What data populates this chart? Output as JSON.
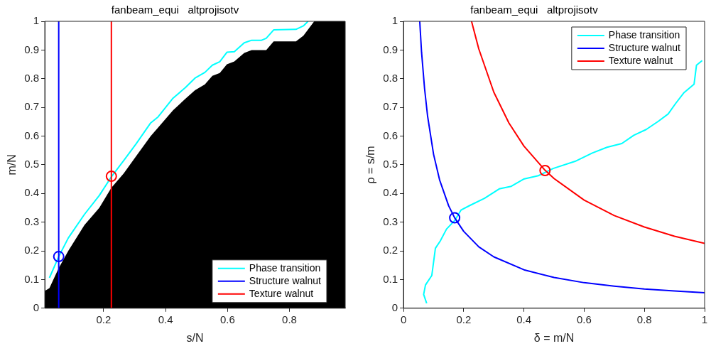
{
  "chart_data": [
    {
      "type": "line",
      "title": "fanbeam_equi   altprojisotv",
      "xlabel": "s/N",
      "ylabel": "m/N",
      "xlim": [
        0.01,
        0.98
      ],
      "ylim": [
        0,
        1
      ],
      "xticks": [
        0.2,
        0.4,
        0.6,
        0.8
      ],
      "yticks": [
        0,
        0.1,
        0.2,
        0.3,
        0.4,
        0.5,
        0.6,
        0.7,
        0.8,
        0.9,
        1
      ],
      "legend": "bottom right",
      "series": [
        {
          "type": "area",
          "color": "#000000",
          "x": [
            0.01,
            0.025,
            0.055,
            0.086,
            0.138,
            0.186,
            0.225,
            0.265,
            0.305,
            0.352,
            0.376,
            0.424,
            0.464,
            0.495,
            0.527,
            0.551,
            0.575,
            0.598,
            0.622,
            0.654,
            0.678,
            0.71,
            0.725,
            0.749,
            0.821,
            0.845,
            0.88,
            0.98
          ],
          "values": [
            0.06,
            0.07,
            0.14,
            0.2,
            0.29,
            0.35,
            0.42,
            0.47,
            0.53,
            0.6,
            0.63,
            0.69,
            0.73,
            0.76,
            0.78,
            0.81,
            0.82,
            0.85,
            0.86,
            0.89,
            0.9,
            0.9,
            0.9,
            0.93,
            0.93,
            0.95,
            1,
            1
          ]
        },
        {
          "type": "line",
          "name": "Phase transition",
          "color": "#00ffff",
          "x": [
            0.025,
            0.055,
            0.086,
            0.138,
            0.186,
            0.225,
            0.265,
            0.305,
            0.352,
            0.376,
            0.424,
            0.464,
            0.495,
            0.527,
            0.551,
            0.575,
            0.598,
            0.622,
            0.654,
            0.678,
            0.71,
            0.725,
            0.749,
            0.821,
            0.845,
            0.86
          ],
          "values": [
            0.106,
            0.18,
            0.245,
            0.327,
            0.393,
            0.458,
            0.515,
            0.573,
            0.646,
            0.667,
            0.732,
            0.769,
            0.802,
            0.822,
            0.847,
            0.859,
            0.892,
            0.894,
            0.925,
            0.934,
            0.934,
            0.941,
            0.97,
            0.972,
            0.984,
            1
          ]
        },
        {
          "type": "line",
          "name": "Structure walnut",
          "color": "#0000ff",
          "x": [
            0.055,
            0.055
          ],
          "values": [
            0,
            1
          ]
        },
        {
          "type": "line",
          "name": "Texture walnut",
          "color": "#ff0000",
          "x": [
            0.225,
            0.225
          ],
          "values": [
            0,
            1
          ]
        },
        {
          "type": "scatter",
          "marker": "circle",
          "color": "#0000ff",
          "x": [
            0.055
          ],
          "values": [
            0.18
          ]
        },
        {
          "type": "scatter",
          "marker": "circle",
          "color": "#ff0000",
          "x": [
            0.225
          ],
          "values": [
            0.46
          ]
        }
      ]
    },
    {
      "type": "line",
      "title": "fanbeam_equi   altprojisotv",
      "xlabel": "δ = m/N",
      "ylabel": "ρ = s/m",
      "xlim": [
        0,
        1
      ],
      "ylim": [
        0,
        1
      ],
      "xticks": [
        0,
        0.2,
        0.4,
        0.6,
        0.8,
        1
      ],
      "yticks": [
        0,
        0.1,
        0.2,
        0.3,
        0.4,
        0.5,
        0.6,
        0.7,
        0.8,
        0.9,
        1
      ],
      "legend": "top right",
      "series": [
        {
          "type": "line",
          "name": "Phase transition",
          "color": "#00ffff",
          "x": [
            0.077,
            0.067,
            0.073,
            0.094,
            0.106,
            0.122,
            0.143,
            0.171,
            0.191,
            0.22,
            0.269,
            0.318,
            0.358,
            0.399,
            0.448,
            0.497,
            0.57,
            0.627,
            0.676,
            0.725,
            0.765,
            0.806,
            0.847,
            0.879,
            0.904,
            0.932,
            0.965,
            0.973,
            0.992
          ],
          "values": [
            0.017,
            0.048,
            0.081,
            0.114,
            0.209,
            0.234,
            0.276,
            0.307,
            0.342,
            0.358,
            0.383,
            0.416,
            0.425,
            0.45,
            0.462,
            0.487,
            0.512,
            0.541,
            0.561,
            0.574,
            0.603,
            0.623,
            0.652,
            0.677,
            0.714,
            0.752,
            0.781,
            0.847,
            0.863
          ]
        },
        {
          "type": "line",
          "name": "Structure walnut",
          "color": "#0000ff",
          "x": [
            0.054,
            0.06,
            0.07,
            0.08,
            0.1,
            0.12,
            0.15,
            0.17,
            0.2,
            0.25,
            0.3,
            0.4,
            0.5,
            0.6,
            0.7,
            0.8,
            0.9,
            1
          ],
          "values": [
            1,
            0.893,
            0.766,
            0.67,
            0.536,
            0.447,
            0.357,
            0.315,
            0.268,
            0.214,
            0.179,
            0.134,
            0.107,
            0.089,
            0.077,
            0.067,
            0.06,
            0.054
          ]
        },
        {
          "type": "line",
          "name": "Texture walnut",
          "color": "#ff0000",
          "x": [
            0.226,
            0.25,
            0.3,
            0.35,
            0.4,
            0.47,
            0.5,
            0.6,
            0.7,
            0.8,
            0.9,
            1
          ],
          "values": [
            1,
            0.904,
            0.753,
            0.646,
            0.565,
            0.481,
            0.452,
            0.377,
            0.323,
            0.283,
            0.251,
            0.226
          ]
        },
        {
          "type": "scatter",
          "marker": "circle",
          "color": "#0000ff",
          "x": [
            0.17
          ],
          "values": [
            0.315
          ]
        },
        {
          "type": "scatter",
          "marker": "circle",
          "color": "#ff0000",
          "x": [
            0.47
          ],
          "values": [
            0.48
          ]
        }
      ]
    }
  ]
}
